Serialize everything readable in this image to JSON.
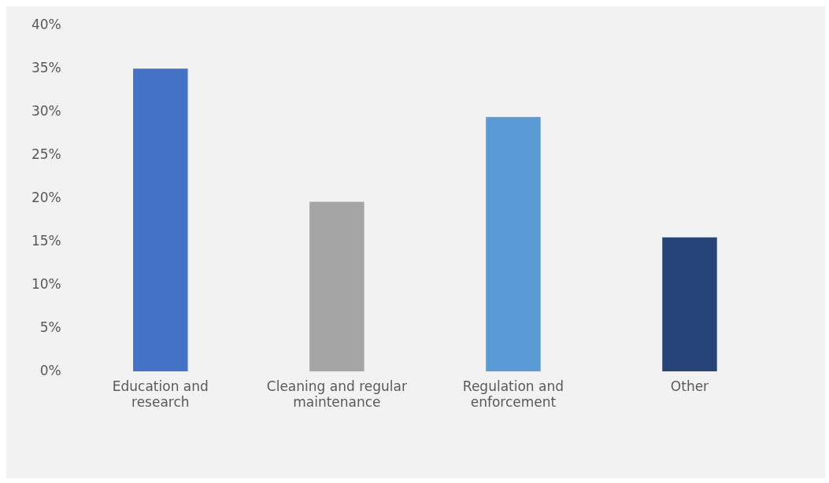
{
  "chart_data": {
    "type": "bar",
    "categories": [
      "Education and research",
      "Cleaning and regular maintenance",
      "Regulation and enforcement",
      "Other"
    ],
    "values": [
      35,
      19.6,
      29.4,
      15.5
    ],
    "colors": [
      "#4472c4",
      "#a5a5a5",
      "#5b9bd5",
      "#264478"
    ],
    "ylim": [
      0,
      40
    ],
    "yticks": [
      {
        "value": 0,
        "label": "0%"
      },
      {
        "value": 5,
        "label": "5%"
      },
      {
        "value": 10,
        "label": "10%"
      },
      {
        "value": 15,
        "label": "15%"
      },
      {
        "value": 20,
        "label": "20%"
      },
      {
        "value": 25,
        "label": "25%"
      },
      {
        "value": 30,
        "label": "30%"
      },
      {
        "value": 35,
        "label": "35%"
      },
      {
        "value": 40,
        "label": "40%"
      }
    ],
    "grid": false,
    "legend": false
  }
}
